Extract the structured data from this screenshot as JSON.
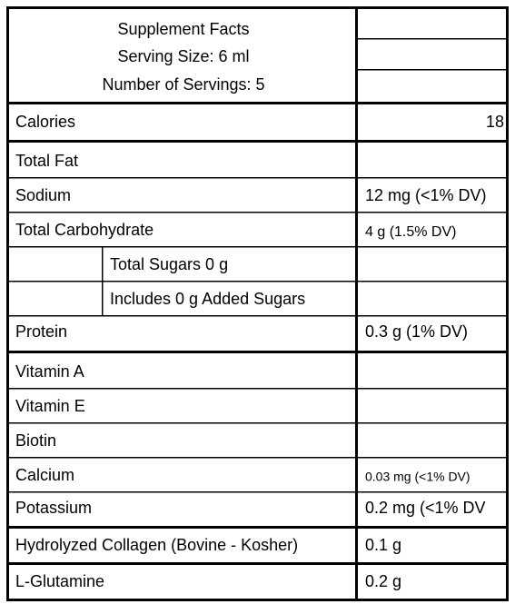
{
  "header": {
    "lines": [
      "Supplement Facts",
      "Serving Size: 6 ml",
      "Number of Servings: 5"
    ]
  },
  "rows": [
    {
      "label": "Calories",
      "value": "18"
    },
    {
      "label": "Total Fat"
    },
    {
      "label": "Sodium",
      "value": "12 mg (<1% DV)"
    },
    {
      "label": "Total Carbohydrate",
      "value": "4 g (1.5% DV)"
    },
    {
      "label": "Total Sugars 0 g"
    },
    {
      "label": "Includes 0 g Added Sugars"
    },
    {
      "label": "Protein",
      "value": "0.3 g (1% DV)"
    },
    {
      "label": "Vitamin A"
    },
    {
      "label": "Vitamin E"
    },
    {
      "label": "Biotin"
    },
    {
      "label": "Calcium",
      "value": "0.03 mg (<1% DV)"
    },
    {
      "label": "Potassium",
      "value": "0.2 mg (<1% DV"
    },
    {
      "label": "Hydrolyzed Collagen (Bovine - Kosher)",
      "value": "0.1 g"
    },
    {
      "label": "L-Glutamine",
      "value": "0.2 g"
    }
  ]
}
